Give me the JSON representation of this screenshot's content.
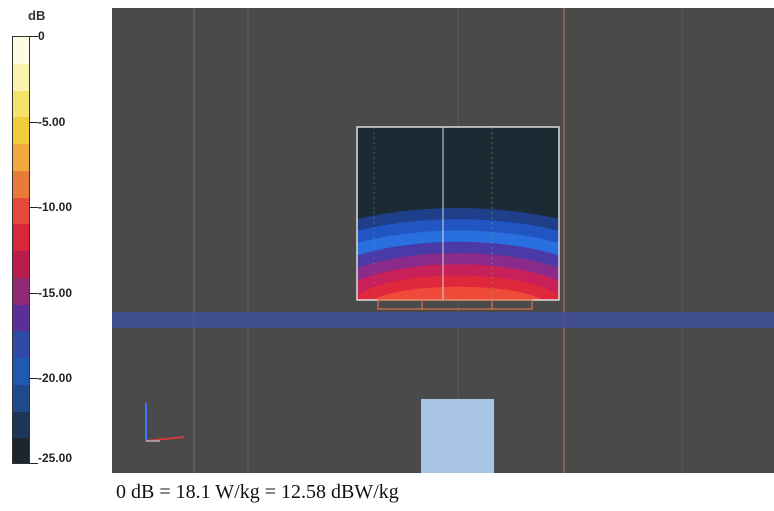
{
  "colorbar": {
    "unit": "dB",
    "ticks": [
      "0",
      "-5.00",
      "-10.00",
      "-15.00",
      "-20.00",
      "-25.00"
    ],
    "colors": [
      "#fffce6",
      "#fbf3b0",
      "#f6e46a",
      "#f2cd3c",
      "#f0a93a",
      "#e97a3a",
      "#e34a3a",
      "#d8273a",
      "#b81c4a",
      "#8e2a74",
      "#5a2f98",
      "#2f4aa8",
      "#1f59b3",
      "#1e4a8c",
      "#1c3558",
      "#1b2630"
    ]
  },
  "viewport": {
    "background": "#4a4a4a",
    "band_color": "#3f4f9a",
    "sar_colors": [
      "#1c2a34",
      "#1f3f8a",
      "#2156c2",
      "#2a6fe0",
      "#4a3aa8",
      "#8a2a8a",
      "#c8205a",
      "#e0283c",
      "#f04a3a"
    ],
    "axis_colors": [
      "#3c78ff",
      "#d23c3c",
      "#b0b0b0"
    ],
    "source_color": "#a8c6e4"
  },
  "caption": "0 dB = 18.1 W/kg = 12.58 dBW/kg"
}
